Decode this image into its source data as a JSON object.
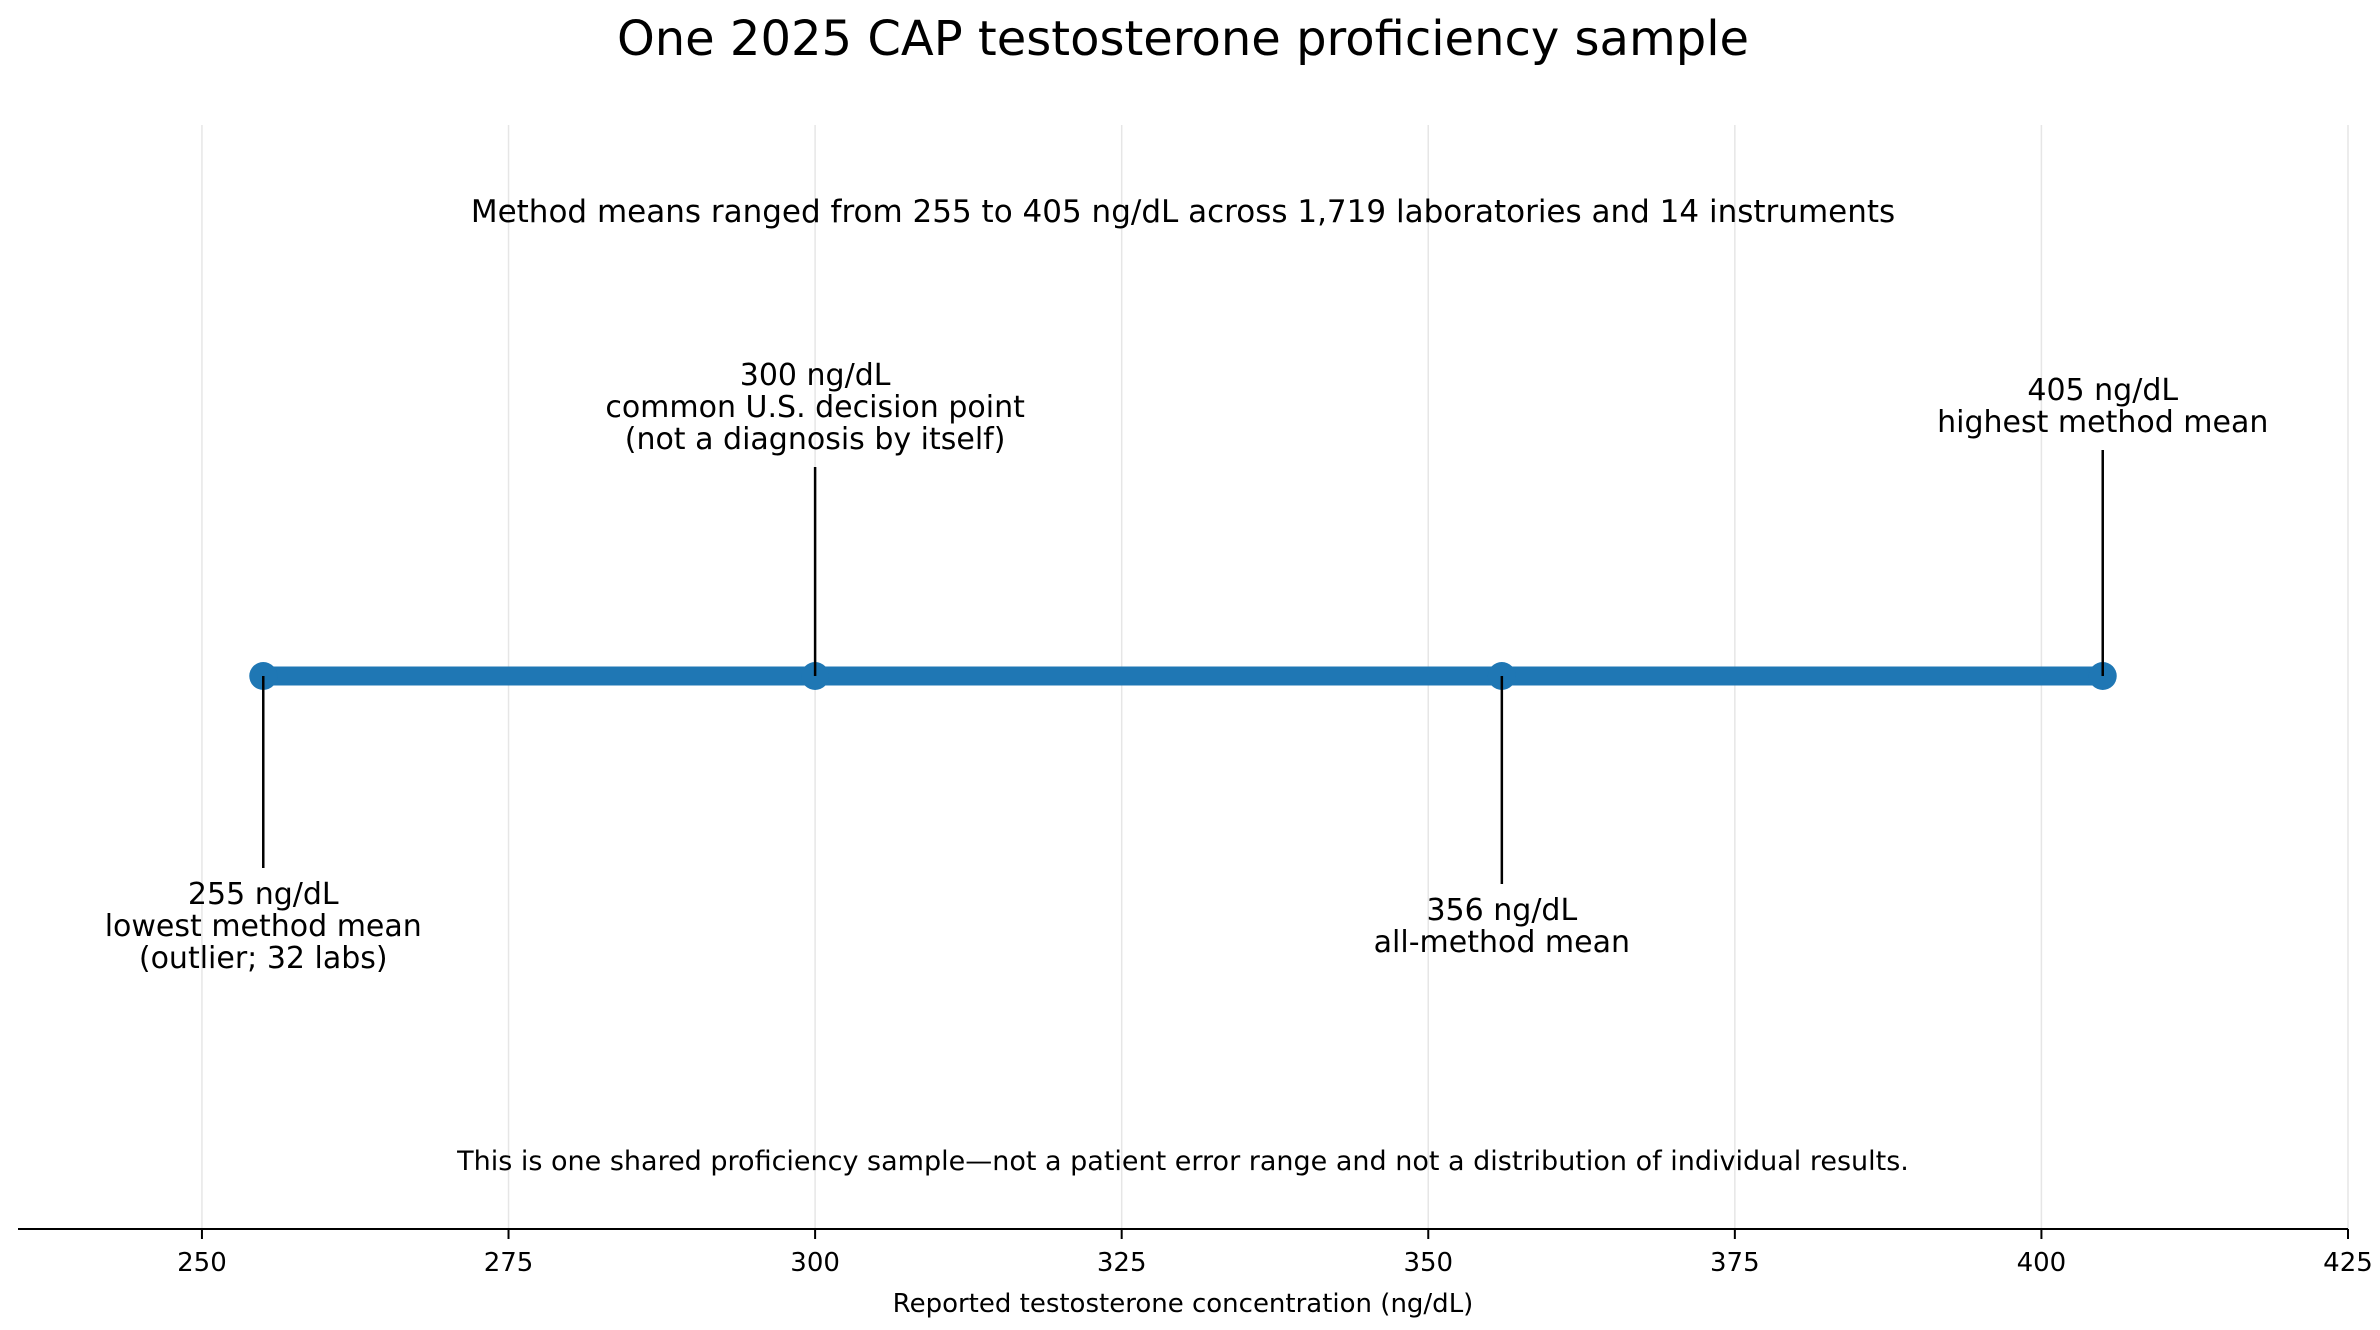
{
  "chart_data": {
    "type": "line",
    "title": "One 2025 CAP testosterone proficiency sample",
    "subtitle": "Method means ranged from 255 to 405 ng/dL across 1,719 laboratories and 14 instruments",
    "xlabel": "Reported testosterone concentration (ng/dL)",
    "ylabel": "",
    "xlim": [
      235,
      425
    ],
    "xticks": [
      250,
      275,
      300,
      325,
      350,
      375,
      400,
      425
    ],
    "grid": "vertical",
    "legend": "none",
    "range": {
      "start": 255,
      "end": 405
    },
    "points": [
      {
        "x": 255,
        "lines": [
          "255 ng/dL",
          "lowest method mean",
          "(outlier; 32 labs)"
        ],
        "label_position": "below"
      },
      {
        "x": 300,
        "lines": [
          "300 ng/dL",
          "common U.S. decision point",
          "(not a diagnosis by itself)"
        ],
        "label_position": "above"
      },
      {
        "x": 356,
        "lines": [
          "356 ng/dL",
          "all-method mean"
        ],
        "label_position": "below"
      },
      {
        "x": 405,
        "lines": [
          "405 ng/dL",
          "highest method mean"
        ],
        "label_position": "above"
      }
    ],
    "footnote": "This is one shared proficiency sample—not a patient error range and not a distribution of individual results.",
    "colors": {
      "range_line": "#1f77b4",
      "grid": "#e6e6e6",
      "axis": "#000000"
    }
  }
}
